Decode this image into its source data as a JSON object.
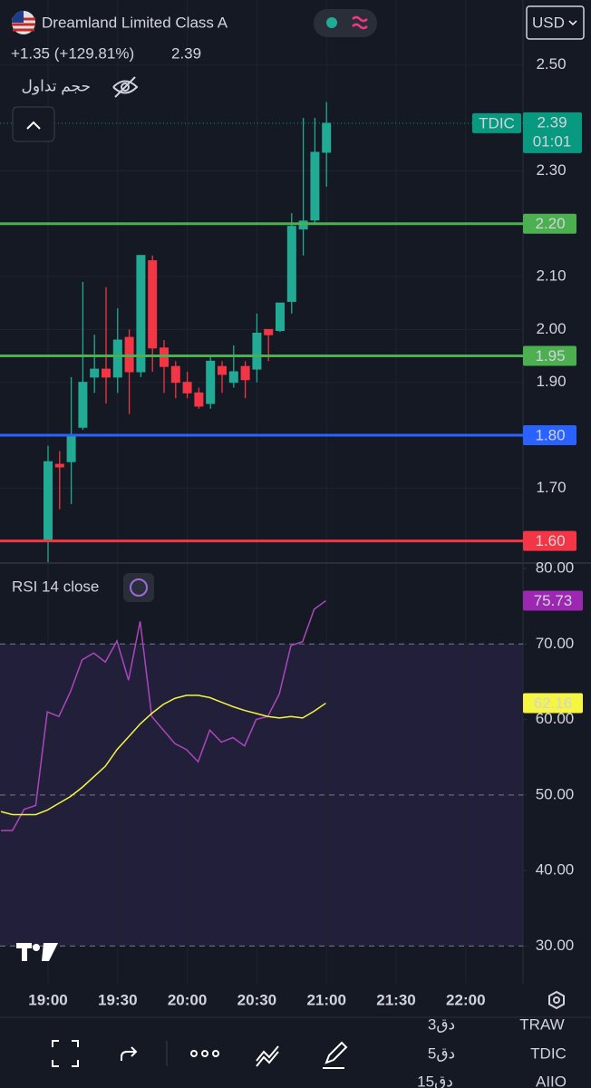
{
  "header": {
    "title": "Dreamland Limited Class A",
    "change": "+1.35 (+129.81%)",
    "price": "2.39",
    "currency": "USD",
    "volume_label": "حجم تداول"
  },
  "price_chart": {
    "type": "candlestick",
    "up_color": "#22ab94",
    "down_color": "#f23645",
    "open": [
      1.6,
      1.745,
      1.75,
      1.815,
      1.91,
      1.925,
      1.91,
      1.985,
      1.92,
      2.13,
      1.965,
      1.93,
      1.9,
      1.88,
      1.86,
      1.93,
      1.9,
      1.93,
      1.925,
      2.0,
      1.998,
      2.053,
      2.19,
      2.207,
      2.335
    ],
    "high": [
      1.78,
      1.77,
      1.91,
      2.09,
      1.99,
      2.08,
      2.04,
      2.0,
      2.14,
      2.14,
      1.98,
      1.94,
      1.92,
      1.89,
      1.95,
      1.94,
      1.97,
      1.94,
      2.03,
      2.0,
      2.05,
      2.22,
      2.4,
      2.4,
      2.43
    ],
    "low": [
      1.55,
      1.66,
      1.67,
      1.81,
      1.88,
      1.86,
      1.88,
      1.84,
      1.91,
      1.92,
      1.88,
      1.87,
      1.87,
      1.85,
      1.85,
      1.88,
      1.89,
      1.87,
      1.9,
      1.94,
      1.995,
      2.03,
      2.14,
      2.2,
      2.27
    ],
    "close": [
      1.75,
      1.74,
      1.8,
      1.9,
      1.925,
      1.91,
      1.98,
      1.92,
      2.14,
      1.965,
      1.93,
      1.9,
      1.88,
      1.855,
      1.94,
      1.915,
      1.92,
      1.905,
      1.993,
      1.99,
      2.05,
      2.195,
      2.205,
      2.335,
      2.39
    ],
    "ylim": [
      1.56,
      2.623
    ],
    "yticks": [
      {
        "value": 2.5,
        "label": "2.50"
      },
      {
        "value": 2.3,
        "label": "2.30"
      },
      {
        "value": 2.1,
        "label": "2.10"
      },
      {
        "value": 2.0,
        "label": "2.00"
      },
      {
        "value": 1.9,
        "label": "1.90"
      },
      {
        "value": 1.7,
        "label": "1.70"
      }
    ],
    "levels": [
      {
        "value": 2.2,
        "label": "2.20",
        "color": "#4caf50"
      },
      {
        "value": 1.95,
        "label": "1.95",
        "color": "#4caf50"
      },
      {
        "value": 1.8,
        "label": "1.80",
        "color": "#2962ff"
      },
      {
        "value": 1.6,
        "label": "1.60",
        "color": "#f23645"
      }
    ],
    "last_price": {
      "value": 2.39,
      "label": "2.39",
      "symbol": "TDIC",
      "countdown": "01:01",
      "color": "#089981"
    },
    "xticks": [
      "19:00",
      "19:30",
      "20:00",
      "20:30",
      "21:00",
      "21:30",
      "22:00"
    ]
  },
  "rsi_chart": {
    "type": "line",
    "title": "RSI 14 close",
    "ylim": [
      25,
      80.6
    ],
    "yticks": [
      {
        "value": 80,
        "label": "80.00"
      },
      {
        "value": 70,
        "label": "70.00"
      },
      {
        "value": 60,
        "label": "60.00"
      },
      {
        "value": 50,
        "label": "50.00"
      },
      {
        "value": 40,
        "label": "40.00"
      },
      {
        "value": 30,
        "label": "30.00"
      }
    ],
    "dashed_levels": [
      70,
      50,
      30
    ],
    "band": [
      30,
      70
    ],
    "series": [
      {
        "color": "#ab47bc",
        "label_color": "#9c27b0",
        "values": [
          45.3,
          45.3,
          48.1,
          48.6,
          61.0,
          60.4,
          63.7,
          67.9,
          68.8,
          67.6,
          70.4,
          65.2,
          73.0,
          60.4,
          58.6,
          56.8,
          56.0,
          54.4,
          58.6,
          57.0,
          57.6,
          56.5,
          60.0,
          60.4,
          63.4,
          69.8,
          70.3,
          74.6,
          75.73
        ]
      },
      {
        "color": "#f5f542",
        "label_color": "#f5f542",
        "values": [
          47.8,
          47.4,
          47.4,
          47.4,
          48.0,
          48.9,
          49.8,
          51.0,
          52.4,
          53.8,
          56.0,
          57.7,
          59.4,
          60.8,
          62.0,
          62.8,
          63.2,
          63.2,
          62.9,
          62.3,
          61.7,
          61.2,
          60.8,
          60.4,
          60.2,
          60.4,
          60.2,
          61.1,
          62.16
        ]
      }
    ]
  },
  "toolbar": {
    "interval": "5دق",
    "symbol": "TDIC",
    "ghost": [
      "3دق",
      "TRAW",
      "15دق",
      "AIIO"
    ]
  }
}
